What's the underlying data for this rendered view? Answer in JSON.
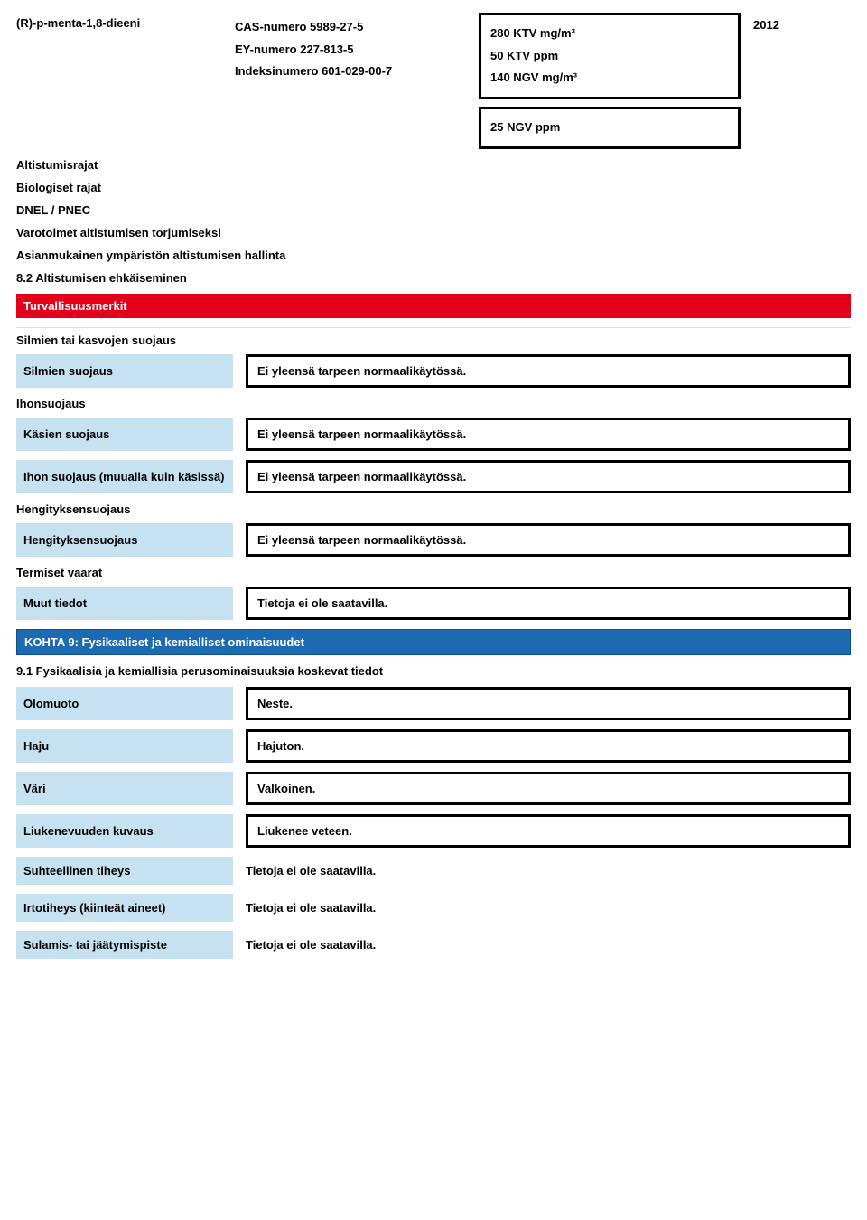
{
  "colors": {
    "label_bg": "#c6e1f0",
    "red_bar_bg": "#e2001a",
    "red_bar_text": "#ffffff",
    "blue_bar_bg": "#1b6ab2",
    "blue_bar_text": "#ffffff",
    "box_border": "#000000"
  },
  "top": {
    "substance": "(R)-p-menta-1,8-dieeni",
    "cas_label": "CAS-numero 5989-27-5",
    "ey_label": "EY-numero 227-813-5",
    "index_label": "Indeksinumero 601-029-00-7",
    "limits": {
      "l1": "280 KTV mg/m³",
      "l2": "50 KTV ppm",
      "l3": "140 NGV mg/m³"
    },
    "year": "2012",
    "limits2": {
      "l1": "25 NGV ppm"
    }
  },
  "lines": {
    "altistumisrajat": "Altistumisrajat",
    "biologiset": "Biologiset rajat",
    "dnel": "DNEL / PNEC",
    "varotoimet": "Varotoimet altistumisen torjumiseksi",
    "asianmukainen": "Asianmukainen ympäristön altistumisen hallinta",
    "sec82": "8.2 Altistumisen ehkäiseminen"
  },
  "redbar": "Turvallisuusmerkit",
  "groups": {
    "eyes_face": "Silmien tai kasvojen suojaus",
    "skin": "Ihonsuojaus",
    "resp": "Hengityksensuojaus",
    "thermal": "Termiset vaarat"
  },
  "rows": {
    "silmien": {
      "label": "Silmien suojaus",
      "value": "Ei yleensä tarpeen normaalikäytössä."
    },
    "kasien": {
      "label": "Käsien suojaus",
      "value": "Ei yleensä tarpeen normaalikäytössä."
    },
    "ihonmuu": {
      "label": "Ihon suojaus (muualla kuin käsissä)",
      "value": "Ei yleensä tarpeen normaalikäytössä."
    },
    "hengitys": {
      "label": "Hengityksensuojaus",
      "value": "Ei yleensä tarpeen normaalikäytössä."
    },
    "muut": {
      "label": "Muut tiedot",
      "value": "Tietoja ei ole saatavilla."
    }
  },
  "section9": {
    "title": "KOHTA 9: Fysikaaliset ja kemialliset ominaisuudet",
    "sub": "9.1 Fysikaalisia ja kemiallisia perusominaisuuksia koskevat tiedot"
  },
  "props": {
    "olomuoto": {
      "label": "Olomuoto",
      "value": "Neste."
    },
    "haju": {
      "label": "Haju",
      "value": "Hajuton."
    },
    "vari": {
      "label": "Väri",
      "value": "Valkoinen."
    },
    "liuk": {
      "label": "Liukenevuuden kuvaus",
      "value": "Liukenee veteen."
    },
    "suht": {
      "label": "Suhteellinen tiheys",
      "value": "Tietoja ei ole saatavilla."
    },
    "irto": {
      "label": "Irtotiheys (kiinteät aineet)",
      "value": "Tietoja ei ole saatavilla."
    },
    "sulamis": {
      "label": "Sulamis- tai jäätymispiste",
      "value": "Tietoja ei ole saatavilla."
    }
  }
}
